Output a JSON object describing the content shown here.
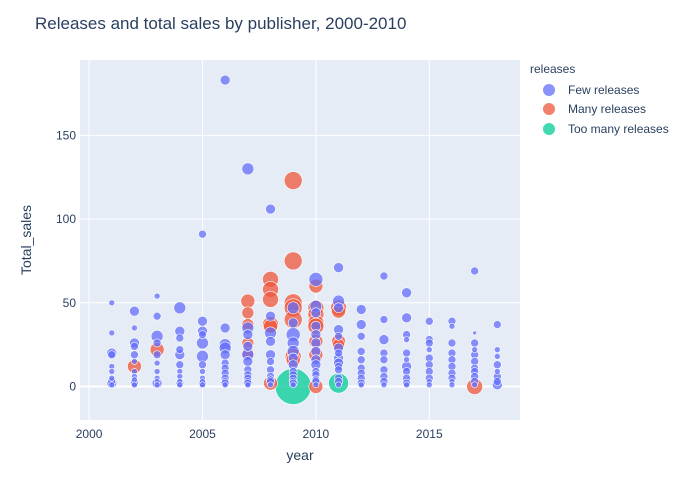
{
  "chart_data": {
    "type": "scatter",
    "title": "Releases and total sales by publisher, 2000-2010",
    "xlabel": "year",
    "ylabel": "Total_sales",
    "xlim": [
      1999.6,
      2019
    ],
    "ylim": [
      -20,
      195
    ],
    "xticks": [
      2000,
      2005,
      2010,
      2015
    ],
    "yticks": [
      0,
      50,
      100,
      150
    ],
    "grid": true,
    "legend": {
      "title": "releases",
      "placement": "right",
      "entries": [
        "Few releases",
        "Many releases",
        "Too many releases"
      ]
    },
    "colors": {
      "Few releases": "#636efa",
      "Many releases": "#ef553b",
      "Too many releases": "#00cc96",
      "plot_bg": "#e5ecf6"
    },
    "series": [
      {
        "name": "Few releases",
        "points": [
          [
            2001,
            50,
            3
          ],
          [
            2001,
            32,
            3
          ],
          [
            2001,
            20,
            5
          ],
          [
            2001,
            19,
            4
          ],
          [
            2001,
            12,
            3
          ],
          [
            2001,
            9,
            3
          ],
          [
            2001,
            5,
            3
          ],
          [
            2001,
            3,
            4
          ],
          [
            2001,
            2,
            5
          ],
          [
            2001,
            1,
            3
          ],
          [
            2002,
            45,
            5
          ],
          [
            2002,
            35,
            3
          ],
          [
            2002,
            26,
            5
          ],
          [
            2002,
            24,
            4
          ],
          [
            2002,
            19,
            4
          ],
          [
            2002,
            15,
            3
          ],
          [
            2002,
            9,
            3
          ],
          [
            2002,
            6,
            3
          ],
          [
            2002,
            4,
            3
          ],
          [
            2002,
            2,
            4
          ],
          [
            2002,
            1,
            3
          ],
          [
            2003,
            54,
            3
          ],
          [
            2003,
            42,
            4
          ],
          [
            2003,
            30,
            6
          ],
          [
            2003,
            26,
            4
          ],
          [
            2003,
            19,
            4
          ],
          [
            2003,
            14,
            3
          ],
          [
            2003,
            9,
            3
          ],
          [
            2003,
            5,
            3
          ],
          [
            2003,
            3,
            3
          ],
          [
            2003,
            2,
            5
          ],
          [
            2003,
            1,
            3
          ],
          [
            2004,
            47,
            6
          ],
          [
            2004,
            33,
            5
          ],
          [
            2004,
            29,
            4
          ],
          [
            2004,
            22,
            4
          ],
          [
            2004,
            19,
            5
          ],
          [
            2004,
            13,
            4
          ],
          [
            2004,
            9,
            3
          ],
          [
            2004,
            6,
            3
          ],
          [
            2004,
            3,
            3
          ],
          [
            2004,
            2,
            4
          ],
          [
            2004,
            1,
            3
          ],
          [
            2005,
            91,
            4
          ],
          [
            2005,
            39,
            5
          ],
          [
            2005,
            33,
            5
          ],
          [
            2005,
            31,
            4
          ],
          [
            2005,
            26,
            6
          ],
          [
            2005,
            18,
            6
          ],
          [
            2005,
            13,
            4
          ],
          [
            2005,
            9,
            3
          ],
          [
            2005,
            5,
            3
          ],
          [
            2005,
            3,
            3
          ],
          [
            2005,
            2,
            4
          ],
          [
            2005,
            1,
            3
          ],
          [
            2006,
            183,
            5
          ],
          [
            2006,
            35,
            5
          ],
          [
            2006,
            25,
            6
          ],
          [
            2006,
            23,
            6
          ],
          [
            2006,
            19,
            5
          ],
          [
            2006,
            14,
            4
          ],
          [
            2006,
            11,
            4
          ],
          [
            2006,
            8,
            4
          ],
          [
            2006,
            5,
            4
          ],
          [
            2006,
            3,
            4
          ],
          [
            2006,
            2,
            4
          ],
          [
            2006,
            1,
            3
          ],
          [
            2007,
            130,
            6
          ],
          [
            2007,
            35,
            6
          ],
          [
            2007,
            31,
            5
          ],
          [
            2007,
            24,
            5
          ],
          [
            2007,
            19,
            6
          ],
          [
            2007,
            15,
            5
          ],
          [
            2007,
            10,
            4
          ],
          [
            2007,
            7,
            4
          ],
          [
            2007,
            5,
            4
          ],
          [
            2007,
            3,
            4
          ],
          [
            2007,
            2,
            4
          ],
          [
            2007,
            1,
            3
          ],
          [
            2008,
            106,
            5
          ],
          [
            2008,
            42,
            5
          ],
          [
            2008,
            32,
            6
          ],
          [
            2008,
            27,
            5
          ],
          [
            2008,
            19,
            5
          ],
          [
            2008,
            15,
            4
          ],
          [
            2008,
            10,
            4
          ],
          [
            2008,
            6,
            4
          ],
          [
            2008,
            4,
            4
          ],
          [
            2008,
            3,
            4
          ],
          [
            2008,
            1,
            3
          ],
          [
            2009,
            47,
            6
          ],
          [
            2009,
            38,
            5
          ],
          [
            2009,
            31,
            7
          ],
          [
            2009,
            26,
            6
          ],
          [
            2009,
            21,
            6
          ],
          [
            2009,
            17,
            5
          ],
          [
            2009,
            13,
            5
          ],
          [
            2009,
            9,
            4
          ],
          [
            2009,
            7,
            4
          ],
          [
            2009,
            5,
            4
          ],
          [
            2009,
            3,
            4
          ],
          [
            2009,
            2,
            4
          ],
          [
            2009,
            1,
            3
          ],
          [
            2010,
            64,
            7
          ],
          [
            2010,
            48,
            6
          ],
          [
            2010,
            44,
            5
          ],
          [
            2010,
            36,
            5
          ],
          [
            2010,
            31,
            5
          ],
          [
            2010,
            26,
            5
          ],
          [
            2010,
            21,
            5
          ],
          [
            2010,
            16,
            5
          ],
          [
            2010,
            13,
            5
          ],
          [
            2010,
            9,
            4
          ],
          [
            2010,
            7,
            4
          ],
          [
            2010,
            4,
            4
          ],
          [
            2010,
            3,
            4
          ],
          [
            2010,
            1,
            3
          ],
          [
            2011,
            71,
            5
          ],
          [
            2011,
            51,
            6
          ],
          [
            2011,
            47,
            5
          ],
          [
            2011,
            34,
            5
          ],
          [
            2011,
            30,
            4
          ],
          [
            2011,
            23,
            5
          ],
          [
            2011,
            20,
            4
          ],
          [
            2011,
            17,
            5
          ],
          [
            2011,
            14,
            5
          ],
          [
            2011,
            12,
            4
          ],
          [
            2011,
            10,
            4
          ],
          [
            2011,
            5,
            4
          ],
          [
            2011,
            3,
            4
          ],
          [
            2011,
            1,
            3
          ],
          [
            2012,
            46,
            5
          ],
          [
            2012,
            37,
            5
          ],
          [
            2012,
            30,
            4
          ],
          [
            2012,
            21,
            4
          ],
          [
            2012,
            16,
            4
          ],
          [
            2012,
            11,
            4
          ],
          [
            2012,
            8,
            4
          ],
          [
            2012,
            5,
            4
          ],
          [
            2012,
            2,
            4
          ],
          [
            2012,
            1,
            3
          ],
          [
            2013,
            66,
            4
          ],
          [
            2013,
            40,
            4
          ],
          [
            2013,
            28,
            5
          ],
          [
            2013,
            20,
            4
          ],
          [
            2013,
            16,
            4
          ],
          [
            2013,
            10,
            4
          ],
          [
            2013,
            6,
            4
          ],
          [
            2013,
            3,
            4
          ],
          [
            2013,
            1,
            3
          ],
          [
            2014,
            56,
            5
          ],
          [
            2014,
            41,
            5
          ],
          [
            2014,
            31,
            4
          ],
          [
            2014,
            28,
            3
          ],
          [
            2014,
            20,
            4
          ],
          [
            2014,
            16,
            3
          ],
          [
            2014,
            12,
            5
          ],
          [
            2014,
            9,
            4
          ],
          [
            2014,
            5,
            4
          ],
          [
            2014,
            2,
            4
          ],
          [
            2014,
            1,
            3
          ],
          [
            2015,
            39,
            4
          ],
          [
            2015,
            28,
            4
          ],
          [
            2015,
            26,
            4
          ],
          [
            2015,
            22,
            3
          ],
          [
            2015,
            17,
            4
          ],
          [
            2015,
            13,
            4
          ],
          [
            2015,
            9,
            4
          ],
          [
            2015,
            5,
            4
          ],
          [
            2015,
            3,
            3
          ],
          [
            2015,
            1,
            3
          ],
          [
            2016,
            39,
            4
          ],
          [
            2016,
            36,
            3
          ],
          [
            2016,
            26,
            4
          ],
          [
            2016,
            20,
            4
          ],
          [
            2016,
            16,
            4
          ],
          [
            2016,
            12,
            4
          ],
          [
            2016,
            8,
            4
          ],
          [
            2016,
            5,
            4
          ],
          [
            2016,
            3,
            3
          ],
          [
            2016,
            1,
            3
          ],
          [
            2017,
            69,
            4
          ],
          [
            2017,
            32,
            2
          ],
          [
            2017,
            26,
            4
          ],
          [
            2017,
            22,
            3
          ],
          [
            2017,
            19,
            4
          ],
          [
            2017,
            15,
            4
          ],
          [
            2017,
            11,
            4
          ],
          [
            2017,
            9,
            4
          ],
          [
            2017,
            6,
            4
          ],
          [
            2017,
            3,
            4
          ],
          [
            2017,
            1,
            3
          ],
          [
            2018,
            37,
            4
          ],
          [
            2018,
            22,
            3
          ],
          [
            2018,
            18,
            3
          ],
          [
            2018,
            13,
            4
          ],
          [
            2018,
            9,
            3
          ],
          [
            2018,
            6,
            4
          ],
          [
            2018,
            3,
            4
          ],
          [
            2018,
            1,
            5
          ]
        ]
      },
      {
        "name": "Many releases",
        "points": [
          [
            2002,
            12,
            7
          ],
          [
            2003,
            22,
            7
          ],
          [
            2007,
            51,
            7
          ],
          [
            2007,
            44,
            6
          ],
          [
            2007,
            37,
            6
          ],
          [
            2007,
            26,
            6
          ],
          [
            2007,
            20,
            6
          ],
          [
            2008,
            64,
            8
          ],
          [
            2008,
            58,
            8
          ],
          [
            2008,
            52,
            8
          ],
          [
            2008,
            37,
            8
          ],
          [
            2008,
            36,
            7
          ],
          [
            2008,
            2,
            7
          ],
          [
            2009,
            123,
            9
          ],
          [
            2009,
            75,
            9
          ],
          [
            2009,
            50,
            9
          ],
          [
            2009,
            47,
            9
          ],
          [
            2009,
            40,
            9
          ],
          [
            2009,
            18,
            8
          ],
          [
            2009,
            16,
            7
          ],
          [
            2010,
            60,
            7
          ],
          [
            2010,
            47,
            8
          ],
          [
            2010,
            43,
            8
          ],
          [
            2010,
            38,
            8
          ],
          [
            2010,
            36,
            8
          ],
          [
            2010,
            27,
            7
          ],
          [
            2010,
            19,
            7
          ],
          [
            2010,
            0,
            7
          ],
          [
            2011,
            47,
            8
          ],
          [
            2011,
            45,
            7
          ],
          [
            2011,
            27,
            7
          ],
          [
            2011,
            25,
            6
          ],
          [
            2017,
            0,
            8
          ]
        ]
      },
      {
        "name": "Too many releases",
        "points": [
          [
            2009,
            0,
            18
          ],
          [
            2011,
            2,
            10
          ]
        ]
      }
    ]
  }
}
